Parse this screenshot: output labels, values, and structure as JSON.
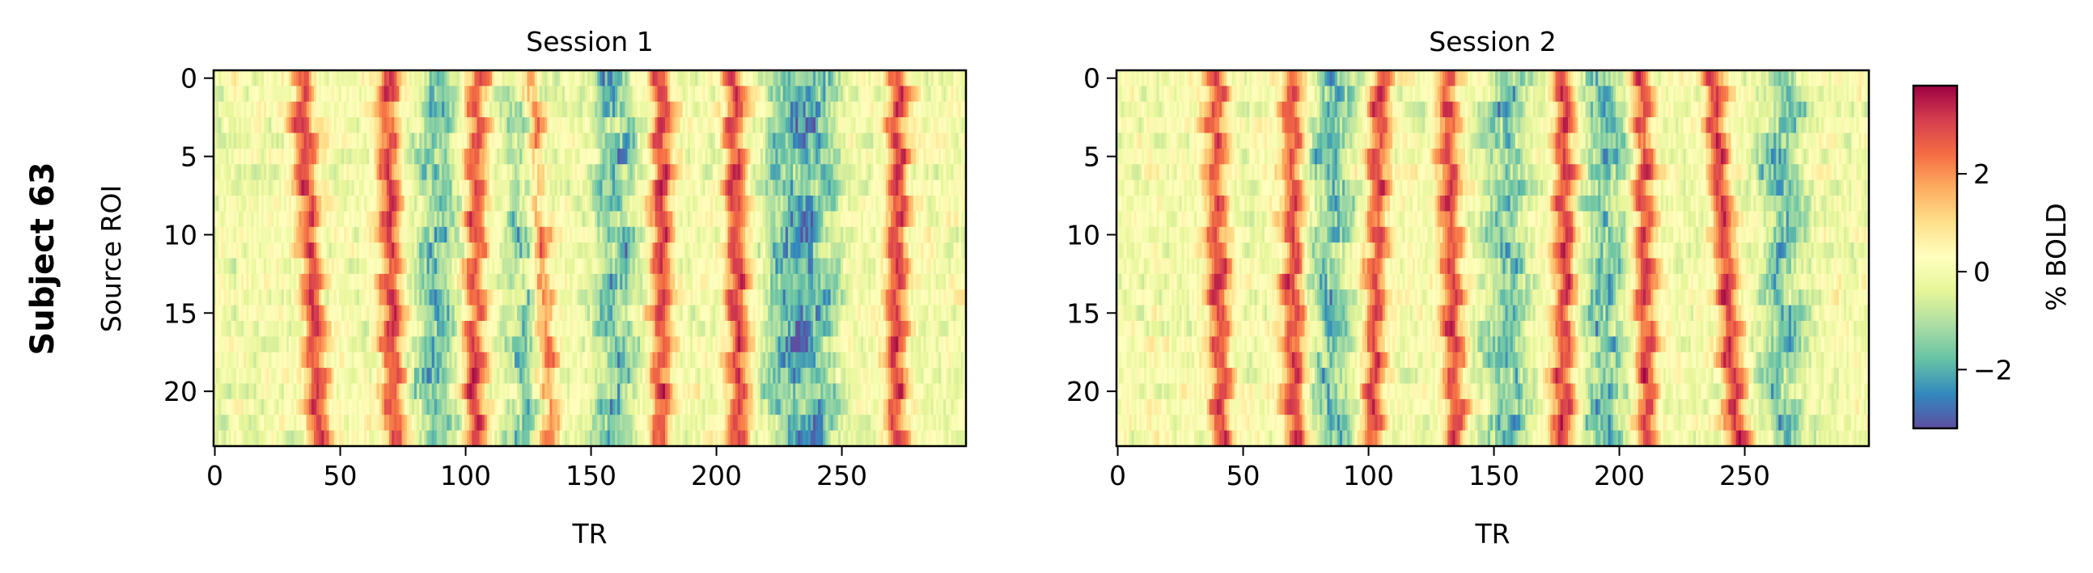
{
  "figure": {
    "row_label": "Subject 63"
  },
  "chart_data": [
    {
      "type": "heatmap",
      "title": "Session 1",
      "xlabel": "TR",
      "ylabel": "Source ROI",
      "n_rows": 24,
      "n_cols": 300,
      "xlim": [
        0,
        299
      ],
      "ylim": [
        23.5,
        -0.5
      ],
      "xticks": [
        0,
        50,
        100,
        150,
        200,
        250
      ],
      "yticks": [
        0,
        5,
        10,
        15,
        20
      ],
      "positive_peaks_tr": [
        38,
        70,
        104,
        130,
        178,
        208,
        272
      ],
      "negative_troughs_tr": [
        88,
        125,
        160,
        228,
        240
      ],
      "peak_drift_tr_per_roi": [
        0.3,
        0.1,
        -0.05,
        0.3,
        0.0,
        0.1,
        -0.05
      ],
      "value_range": [
        -3.2,
        3.8
      ]
    },
    {
      "type": "heatmap",
      "title": "Session 2",
      "xlabel": "TR",
      "ylabel": "",
      "n_rows": 24,
      "n_cols": 300,
      "xlim": [
        0,
        299
      ],
      "ylim": [
        23.5,
        -0.5
      ],
      "xticks": [
        0,
        50,
        100,
        150,
        200,
        250
      ],
      "yticks": [
        0,
        5,
        10,
        15,
        20
      ],
      "positive_peaks_tr": [
        40,
        70,
        103,
        133,
        178,
        210,
        242
      ],
      "negative_troughs_tr": [
        85,
        155,
        195,
        265
      ],
      "peak_drift_tr_per_roi": [
        0.1,
        0.05,
        -0.15,
        0.15,
        0.0,
        0.1,
        0.4
      ],
      "value_range": [
        -3.2,
        3.8
      ]
    }
  ],
  "colorbar": {
    "label": "% BOLD",
    "colormap": "Spectral_r",
    "range": [
      -3.2,
      3.8
    ],
    "ticks": [
      -2,
      0,
      2
    ],
    "tick_labels": [
      "−2",
      "0",
      "2"
    ]
  }
}
